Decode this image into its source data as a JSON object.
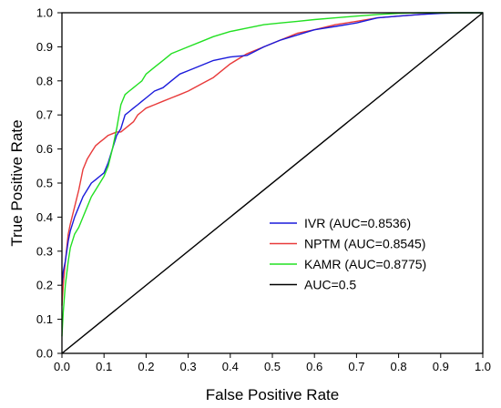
{
  "chart_data": {
    "type": "line",
    "title": "",
    "xlabel": "False Positive Rate",
    "ylabel": "True Positive Rate",
    "xlim": [
      0.0,
      1.0
    ],
    "ylim": [
      0.0,
      1.0
    ],
    "xticks": [
      "0.0",
      "0.1",
      "0.2",
      "0.3",
      "0.4",
      "0.5",
      "0.6",
      "0.7",
      "0.8",
      "0.9",
      "1.0"
    ],
    "yticks": [
      "0.0",
      "0.1",
      "0.2",
      "0.3",
      "0.4",
      "0.5",
      "0.6",
      "0.7",
      "0.8",
      "0.9",
      "1.0"
    ],
    "grid": false,
    "legend_position": "lower-right",
    "series": [
      {
        "name": "IVR (AUC=0.8536)",
        "color": "#1a1adb",
        "x": [
          0,
          0.003,
          0.008,
          0.015,
          0.02,
          0.03,
          0.04,
          0.05,
          0.06,
          0.07,
          0.08,
          0.09,
          0.1,
          0.11,
          0.12,
          0.13,
          0.14,
          0.15,
          0.16,
          0.17,
          0.18,
          0.19,
          0.2,
          0.22,
          0.24,
          0.26,
          0.28,
          0.3,
          0.33,
          0.36,
          0.4,
          0.44,
          0.48,
          0.52,
          0.56,
          0.6,
          0.65,
          0.7,
          0.75,
          0.8,
          0.85,
          0.9,
          0.95,
          1.0
        ],
        "y": [
          0.2,
          0.24,
          0.27,
          0.33,
          0.36,
          0.4,
          0.43,
          0.46,
          0.48,
          0.5,
          0.51,
          0.52,
          0.53,
          0.56,
          0.6,
          0.64,
          0.66,
          0.7,
          0.71,
          0.72,
          0.73,
          0.74,
          0.75,
          0.77,
          0.78,
          0.8,
          0.82,
          0.83,
          0.845,
          0.86,
          0.87,
          0.875,
          0.9,
          0.92,
          0.935,
          0.95,
          0.96,
          0.97,
          0.985,
          0.99,
          0.995,
          0.998,
          1.0,
          1.0
        ]
      },
      {
        "name": "NPTM (AUC=0.8545)",
        "color": "#e83a3a",
        "x": [
          0,
          0.003,
          0.008,
          0.015,
          0.02,
          0.03,
          0.04,
          0.05,
          0.06,
          0.07,
          0.08,
          0.09,
          0.1,
          0.11,
          0.12,
          0.13,
          0.14,
          0.15,
          0.16,
          0.17,
          0.18,
          0.19,
          0.2,
          0.22,
          0.24,
          0.26,
          0.28,
          0.3,
          0.33,
          0.36,
          0.4,
          0.44,
          0.48,
          0.52,
          0.56,
          0.6,
          0.65,
          0.7,
          0.75,
          0.8,
          0.85,
          0.9,
          0.95,
          1.0
        ],
        "y": [
          0.14,
          0.2,
          0.27,
          0.35,
          0.38,
          0.43,
          0.48,
          0.54,
          0.57,
          0.59,
          0.61,
          0.62,
          0.63,
          0.64,
          0.645,
          0.65,
          0.65,
          0.66,
          0.67,
          0.68,
          0.7,
          0.71,
          0.72,
          0.73,
          0.74,
          0.75,
          0.76,
          0.77,
          0.79,
          0.81,
          0.85,
          0.88,
          0.9,
          0.92,
          0.94,
          0.95,
          0.965,
          0.975,
          0.985,
          0.99,
          0.995,
          1.0,
          1.0,
          1.0
        ]
      },
      {
        "name": "KAMR (AUC=0.8775)",
        "color": "#22e022",
        "x": [
          0,
          0.003,
          0.008,
          0.015,
          0.02,
          0.03,
          0.04,
          0.05,
          0.06,
          0.07,
          0.08,
          0.09,
          0.1,
          0.11,
          0.12,
          0.13,
          0.14,
          0.15,
          0.16,
          0.17,
          0.18,
          0.19,
          0.2,
          0.22,
          0.24,
          0.26,
          0.28,
          0.3,
          0.33,
          0.36,
          0.4,
          0.44,
          0.48,
          0.52,
          0.56,
          0.6,
          0.65,
          0.7,
          0.75,
          0.8,
          0.85,
          0.9,
          0.95,
          1.0
        ],
        "y": [
          0.05,
          0.12,
          0.2,
          0.27,
          0.31,
          0.35,
          0.37,
          0.4,
          0.43,
          0.46,
          0.48,
          0.5,
          0.52,
          0.55,
          0.6,
          0.66,
          0.73,
          0.76,
          0.77,
          0.78,
          0.79,
          0.8,
          0.82,
          0.84,
          0.86,
          0.88,
          0.89,
          0.9,
          0.915,
          0.93,
          0.945,
          0.955,
          0.965,
          0.97,
          0.975,
          0.98,
          0.985,
          0.99,
          0.995,
          0.998,
          1.0,
          1.0,
          1.0,
          1.0
        ]
      },
      {
        "name": "AUC=0.5",
        "color": "#000000",
        "x": [
          0.0,
          1.0
        ],
        "y": [
          0.0,
          1.0
        ]
      }
    ]
  }
}
